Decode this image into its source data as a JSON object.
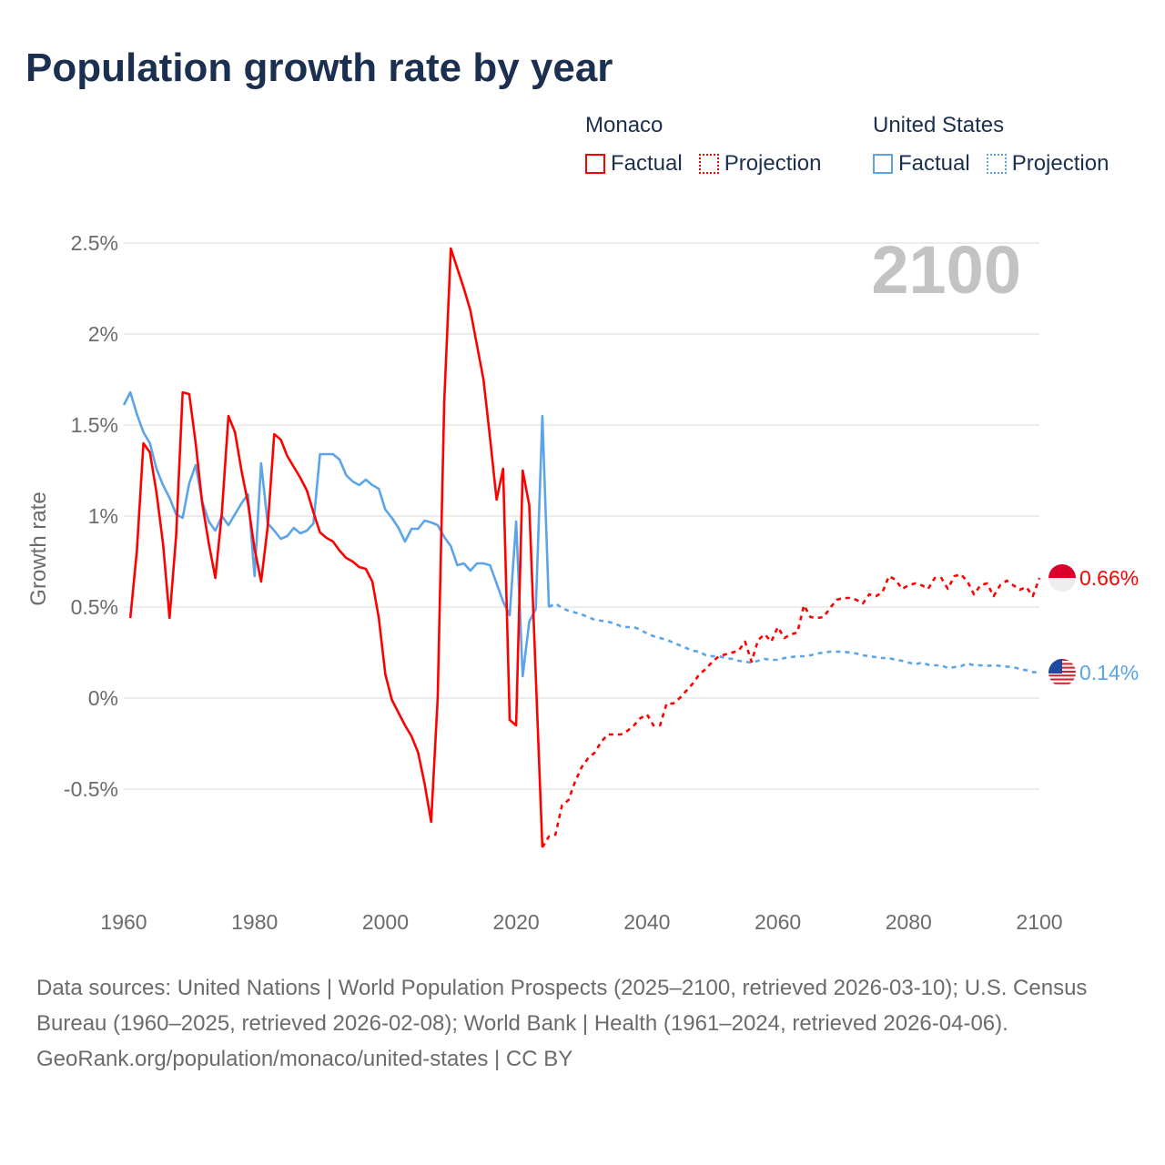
{
  "title": "Population growth rate by year",
  "legend": {
    "groups": [
      {
        "name": "Monaco",
        "items": [
          "Factual",
          "Projection"
        ],
        "color": "#ff0000"
      },
      {
        "name": "United States",
        "items": [
          "Factual",
          "Projection"
        ],
        "color": "#5ba4e8"
      }
    ]
  },
  "chart_data": {
    "type": "line",
    "title": "Population growth rate by year",
    "xlabel": "",
    "ylabel": "Growth rate",
    "xlim": [
      1960,
      2100
    ],
    "ylim": [
      -1.0,
      2.5
    ],
    "x_ticks": [
      "1960",
      "1980",
      "2000",
      "2020",
      "2040",
      "2060",
      "2080",
      "2100"
    ],
    "x_tick_values": [
      1960,
      1980,
      2000,
      2020,
      2040,
      2060,
      2080,
      2100
    ],
    "y_ticks": [
      "2.5%",
      "2%",
      "1.5%",
      "1%",
      "0.5%",
      "0%",
      "-0.5%"
    ],
    "y_tick_values": [
      2.5,
      2,
      1.5,
      1,
      0.5,
      0,
      -0.5
    ],
    "grid": true,
    "current_year_label": "2100",
    "series": [
      {
        "name": "Monaco",
        "kind": "Factual",
        "color": "#ff0000",
        "x_start": 1961,
        "values": [
          0.44,
          0.81,
          1.4,
          1.35,
          1.13,
          0.85,
          0.44,
          0.89,
          1.68,
          1.67,
          1.4,
          1.07,
          0.85,
          0.66,
          1.02,
          1.55,
          1.46,
          1.25,
          1.07,
          0.82,
          0.64,
          0.94,
          1.45,
          1.42,
          1.33,
          1.27,
          1.21,
          1.14,
          1.02,
          0.91,
          0.88,
          0.86,
          0.81,
          0.77,
          0.75,
          0.72,
          0.71,
          0.64,
          0.44,
          0.13,
          -0.01,
          -0.08,
          -0.15,
          -0.21,
          -0.3,
          -0.47,
          -0.68,
          0.0,
          1.63,
          2.47,
          2.36,
          2.25,
          2.13,
          1.94,
          1.75,
          1.43,
          1.09,
          1.26,
          -0.12,
          -0.15,
          1.25,
          1.06,
          0.12,
          -0.82
        ]
      },
      {
        "name": "Monaco",
        "kind": "Projection",
        "color": "#ff0000",
        "x_start": 2025,
        "values": [
          -0.76,
          -0.75,
          -0.59,
          -0.56,
          -0.46,
          -0.38,
          -0.33,
          -0.3,
          -0.24,
          -0.2,
          -0.2,
          -0.2,
          -0.18,
          -0.15,
          -0.11,
          -0.09,
          -0.15,
          -0.15,
          -0.03,
          -0.03,
          0.0,
          0.04,
          0.08,
          0.13,
          0.16,
          0.2,
          0.23,
          0.24,
          0.25,
          0.26,
          0.31,
          0.2,
          0.32,
          0.35,
          0.31,
          0.39,
          0.33,
          0.35,
          0.36,
          0.51,
          0.445,
          0.44,
          0.445,
          0.495,
          0.54,
          0.55,
          0.55,
          0.54,
          0.52,
          0.57,
          0.56,
          0.58,
          0.67,
          0.65,
          0.6,
          0.62,
          0.63,
          0.62,
          0.6,
          0.66,
          0.66,
          0.6,
          0.67,
          0.68,
          0.64,
          0.57,
          0.62,
          0.63,
          0.56,
          0.62,
          0.645,
          0.62,
          0.595,
          0.61,
          0.56,
          0.66
        ]
      },
      {
        "name": "United States",
        "kind": "Factual",
        "color": "#5ba4e8",
        "x_start": 1960,
        "values": [
          1.61,
          1.68,
          1.56,
          1.46,
          1.4,
          1.26,
          1.17,
          1.1,
          1.01,
          0.99,
          1.18,
          1.28,
          1.08,
          0.97,
          0.92,
          1.0,
          0.95,
          1.01,
          1.07,
          1.12,
          0.67,
          1.29,
          0.96,
          0.92,
          0.875,
          0.89,
          0.935,
          0.905,
          0.92,
          0.96,
          1.34,
          1.34,
          1.34,
          1.31,
          1.225,
          1.19,
          1.17,
          1.2,
          1.17,
          1.15,
          1.035,
          0.99,
          0.935,
          0.86,
          0.93,
          0.93,
          0.975,
          0.965,
          0.95,
          0.885,
          0.835,
          0.73,
          0.74,
          0.7,
          0.74,
          0.74,
          0.73,
          0.63,
          0.53,
          0.455,
          0.97,
          0.12,
          0.42,
          0.49,
          1.55,
          0.5
        ]
      },
      {
        "name": "United States",
        "kind": "Projection",
        "color": "#5ba4e8",
        "x_start": 2026,
        "values": [
          0.52,
          0.495,
          0.48,
          0.47,
          0.46,
          0.445,
          0.43,
          0.425,
          0.42,
          0.41,
          0.395,
          0.39,
          0.39,
          0.375,
          0.355,
          0.34,
          0.33,
          0.32,
          0.305,
          0.29,
          0.275,
          0.26,
          0.255,
          0.235,
          0.23,
          0.23,
          0.22,
          0.215,
          0.205,
          0.2,
          0.195,
          0.205,
          0.215,
          0.21,
          0.21,
          0.22,
          0.225,
          0.23,
          0.23,
          0.235,
          0.245,
          0.25,
          0.255,
          0.255,
          0.255,
          0.25,
          0.245,
          0.235,
          0.23,
          0.225,
          0.22,
          0.22,
          0.21,
          0.205,
          0.195,
          0.185,
          0.195,
          0.183,
          0.18,
          0.18,
          0.165,
          0.17,
          0.175,
          0.19,
          0.18,
          0.18,
          0.177,
          0.18,
          0.177,
          0.173,
          0.17,
          0.16,
          0.153,
          0.143,
          0.14
        ]
      }
    ],
    "end_labels": [
      {
        "name": "Monaco",
        "value": 0.66,
        "text": "0.66%",
        "color": "#ff0000",
        "flag": "monaco-flag"
      },
      {
        "name": "United States",
        "value": 0.14,
        "text": "0.14%",
        "color": "#5ba4e8",
        "flag": "us-flag"
      }
    ]
  },
  "footer": {
    "sources": "Data sources: United Nations | World Population Prospects (2025–2100, retrieved 2026-03-10); U.S. Census Bureau (1960–2025, retrieved 2026-02-08); World Bank | Health (1961–2024, retrieved 2026-04-06).",
    "credit": "GeoRank.org/population/monaco/united-states | CC BY"
  }
}
